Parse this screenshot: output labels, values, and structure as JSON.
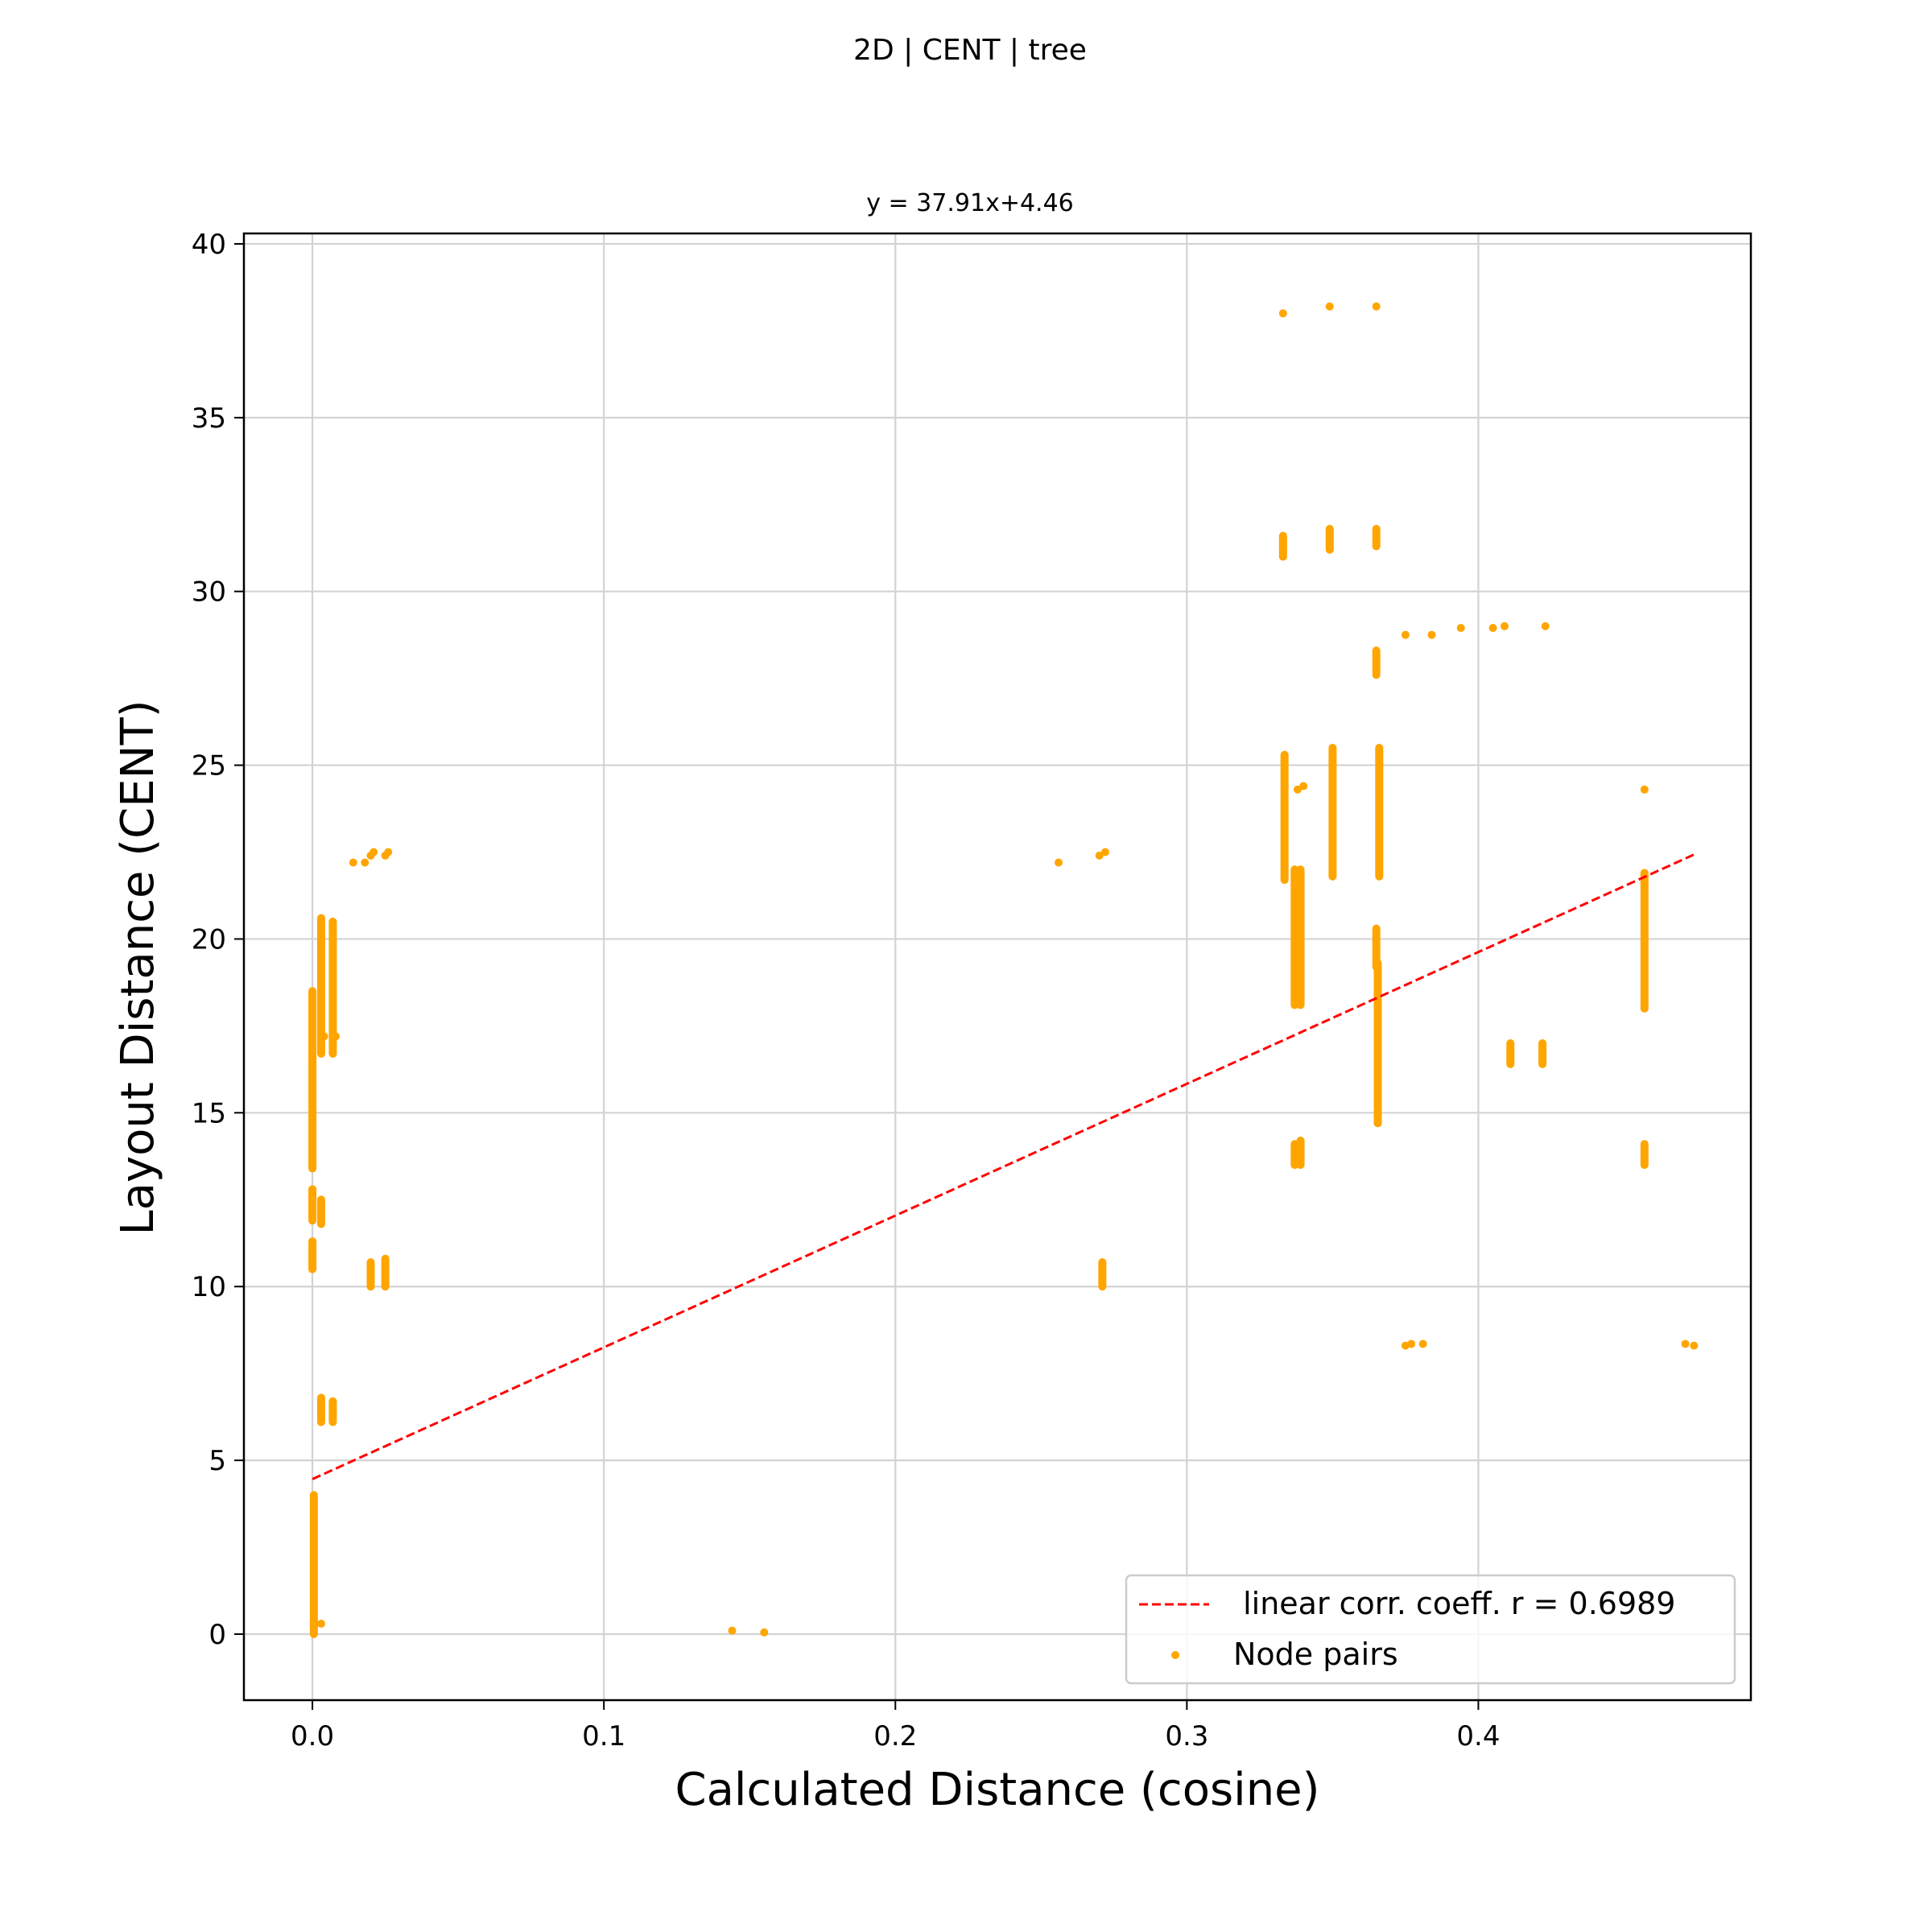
{
  "figure": {
    "suptitle": "2D | CENT | tree",
    "subtitle": "y = 37.91x+4.46"
  },
  "chart_data": {
    "type": "scatter",
    "xlabel": "Calculated Distance (cosine)",
    "ylabel": "Layout Distance (CENT)",
    "xlim": [
      -0.0235,
      0.4935
    ],
    "ylim": [
      -1.9,
      40.3
    ],
    "xticks": [
      0.0,
      0.1,
      0.2,
      0.3,
      0.4
    ],
    "xtick_labels": [
      "0.0",
      "0.1",
      "0.2",
      "0.3",
      "0.4"
    ],
    "yticks": [
      0,
      5,
      10,
      15,
      20,
      25,
      30,
      35,
      40
    ],
    "ytick_labels": [
      "0",
      "5",
      "10",
      "15",
      "20",
      "25",
      "30",
      "35",
      "40"
    ],
    "grid": true,
    "legend_position": "lower-right",
    "fit_line": {
      "label": " linear corr. coeff. r = 0.6989",
      "slope": 37.91,
      "intercept": 4.46,
      "x_range": [
        0.0,
        0.474
      ],
      "color": "#ff0000",
      "style": "dashed"
    },
    "series": [
      {
        "name": "Node pairs",
        "color": "#ffa500",
        "segments": [
          {
            "x": 0.0,
            "y0": 13.4,
            "y1": 18.5
          },
          {
            "x": 0.0,
            "y0": 11.9,
            "y1": 12.8
          },
          {
            "x": 0.0,
            "y0": 10.5,
            "y1": 11.3
          },
          {
            "x": 0.0005,
            "y0": 0.0,
            "y1": 4.0
          },
          {
            "x": 0.003,
            "y0": 16.7,
            "y1": 20.6
          },
          {
            "x": 0.003,
            "y0": 11.8,
            "y1": 12.5
          },
          {
            "x": 0.003,
            "y0": 6.1,
            "y1": 6.8
          },
          {
            "x": 0.007,
            "y0": 16.7,
            "y1": 20.5
          },
          {
            "x": 0.007,
            "y0": 6.1,
            "y1": 6.7
          },
          {
            "x": 0.02,
            "y0": 10.0,
            "y1": 10.7
          },
          {
            "x": 0.025,
            "y0": 10.0,
            "y1": 10.8
          },
          {
            "x": 0.271,
            "y0": 10.0,
            "y1": 10.7
          },
          {
            "x": 0.333,
            "y0": 31.0,
            "y1": 31.6
          },
          {
            "x": 0.3335,
            "y0": 21.7,
            "y1": 25.3
          },
          {
            "x": 0.337,
            "y0": 18.1,
            "y1": 22.0
          },
          {
            "x": 0.337,
            "y0": 13.5,
            "y1": 14.1
          },
          {
            "x": 0.339,
            "y0": 18.1,
            "y1": 22.0
          },
          {
            "x": 0.339,
            "y0": 13.5,
            "y1": 14.2
          },
          {
            "x": 0.349,
            "y0": 31.2,
            "y1": 31.8
          },
          {
            "x": 0.35,
            "y0": 21.8,
            "y1": 25.5
          },
          {
            "x": 0.365,
            "y0": 31.3,
            "y1": 31.8
          },
          {
            "x": 0.365,
            "y0": 27.6,
            "y1": 28.3
          },
          {
            "x": 0.365,
            "y0": 19.2,
            "y1": 20.3
          },
          {
            "x": 0.3655,
            "y0": 14.7,
            "y1": 19.3
          },
          {
            "x": 0.366,
            "y0": 21.8,
            "y1": 25.5
          },
          {
            "x": 0.411,
            "y0": 16.4,
            "y1": 17.0
          },
          {
            "x": 0.422,
            "y0": 16.4,
            "y1": 17.0
          },
          {
            "x": 0.457,
            "y0": 18.0,
            "y1": 21.9
          },
          {
            "x": 0.457,
            "y0": 13.5,
            "y1": 14.1
          }
        ],
        "points": [
          {
            "x": 0.003,
            "y": 0.3
          },
          {
            "x": 0.004,
            "y": 17.2
          },
          {
            "x": 0.008,
            "y": 17.2
          },
          {
            "x": 0.014,
            "y": 22.2
          },
          {
            "x": 0.018,
            "y": 22.2
          },
          {
            "x": 0.02,
            "y": 22.4
          },
          {
            "x": 0.021,
            "y": 22.5
          },
          {
            "x": 0.025,
            "y": 22.4
          },
          {
            "x": 0.026,
            "y": 22.5
          },
          {
            "x": 0.144,
            "y": 0.1
          },
          {
            "x": 0.155,
            "y": 0.05
          },
          {
            "x": 0.256,
            "y": 22.2
          },
          {
            "x": 0.27,
            "y": 22.4
          },
          {
            "x": 0.272,
            "y": 22.5
          },
          {
            "x": 0.333,
            "y": 38.0
          },
          {
            "x": 0.349,
            "y": 38.2
          },
          {
            "x": 0.365,
            "y": 38.2
          },
          {
            "x": 0.338,
            "y": 24.3
          },
          {
            "x": 0.34,
            "y": 24.4
          },
          {
            "x": 0.375,
            "y": 28.75
          },
          {
            "x": 0.384,
            "y": 28.75
          },
          {
            "x": 0.394,
            "y": 28.95
          },
          {
            "x": 0.405,
            "y": 28.95
          },
          {
            "x": 0.409,
            "y": 29.0
          },
          {
            "x": 0.423,
            "y": 29.0
          },
          {
            "x": 0.375,
            "y": 8.3
          },
          {
            "x": 0.377,
            "y": 8.35
          },
          {
            "x": 0.381,
            "y": 8.35
          },
          {
            "x": 0.457,
            "y": 24.3
          },
          {
            "x": 0.471,
            "y": 8.35
          },
          {
            "x": 0.474,
            "y": 8.3
          }
        ]
      }
    ]
  }
}
